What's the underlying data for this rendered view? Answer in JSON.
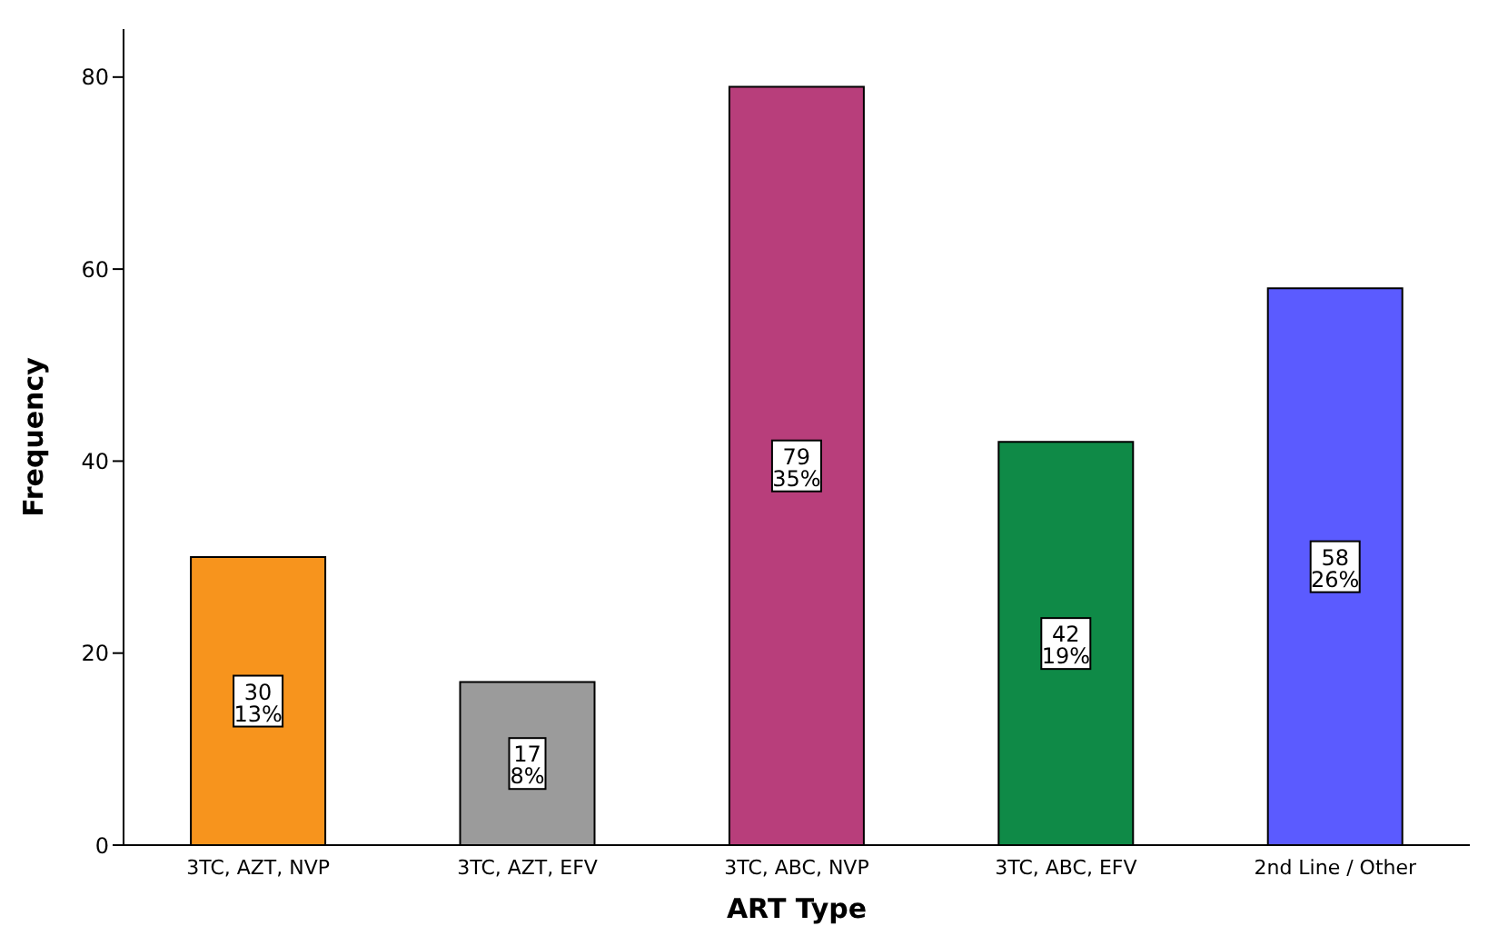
{
  "chart_data": {
    "type": "bar",
    "xlabel": "ART Type",
    "ylabel": "Frequency",
    "categories": [
      "3TC, AZT, NVP",
      "3TC, AZT, EFV",
      "3TC, ABC, NVP",
      "3TC, ABC, EFV",
      "2nd Line / Other"
    ],
    "values": [
      30,
      17,
      79,
      42,
      58
    ],
    "colors": [
      "#f7941d",
      "#9b9b9b",
      "#b83e7b",
      "#0f8a47",
      "#5b5bff"
    ],
    "value_labels": [
      "30\n13%",
      "17\n8%",
      "79\n35%",
      "42\n19%",
      "58\n26%"
    ],
    "ylim": [
      0,
      85
    ],
    "yticks": [
      0,
      20,
      40,
      60,
      80
    ]
  }
}
